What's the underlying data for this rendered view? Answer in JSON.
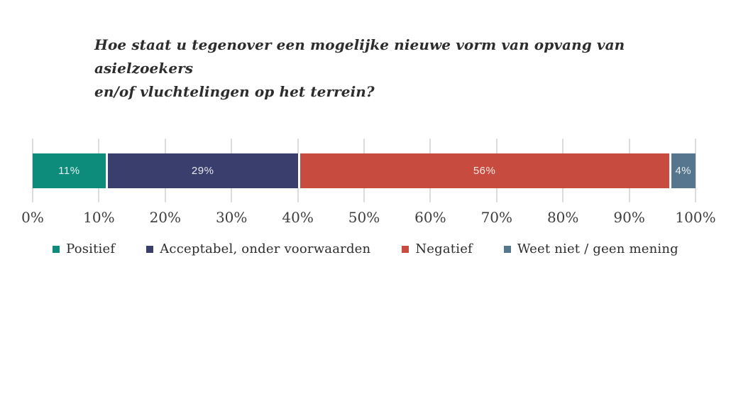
{
  "title": {
    "line1": "Hoe staat u tegenover een mogelijke nieuwe vorm van opvang van asielzoekers",
    "line2": "en/of vluchtelingen op het terrein?"
  },
  "chart_data": {
    "type": "bar",
    "orientation": "horizontal-stacked",
    "title": "Hoe staat u tegenover een mogelijke nieuwe vorm van opvang van asielzoekers en/of vluchtelingen op het terrein?",
    "categories": [
      "Positief",
      "Acceptabel, onder voorwaarden",
      "Negatief",
      "Weet niet / geen mening"
    ],
    "values": [
      11,
      29,
      56,
      4
    ],
    "value_labels": [
      "11%",
      "29%",
      "56%",
      "4%"
    ],
    "colors": [
      "#0d8c7c",
      "#3a3e6d",
      "#c84b40",
      "#56768e"
    ],
    "xlim": [
      0,
      100
    ],
    "x_ticks": [
      "0%",
      "10%",
      "20%",
      "30%",
      "40%",
      "50%",
      "60%",
      "70%",
      "80%",
      "90%",
      "100%"
    ],
    "grid": true,
    "legend_position": "bottom",
    "grid_color": "#dcdcdc"
  }
}
